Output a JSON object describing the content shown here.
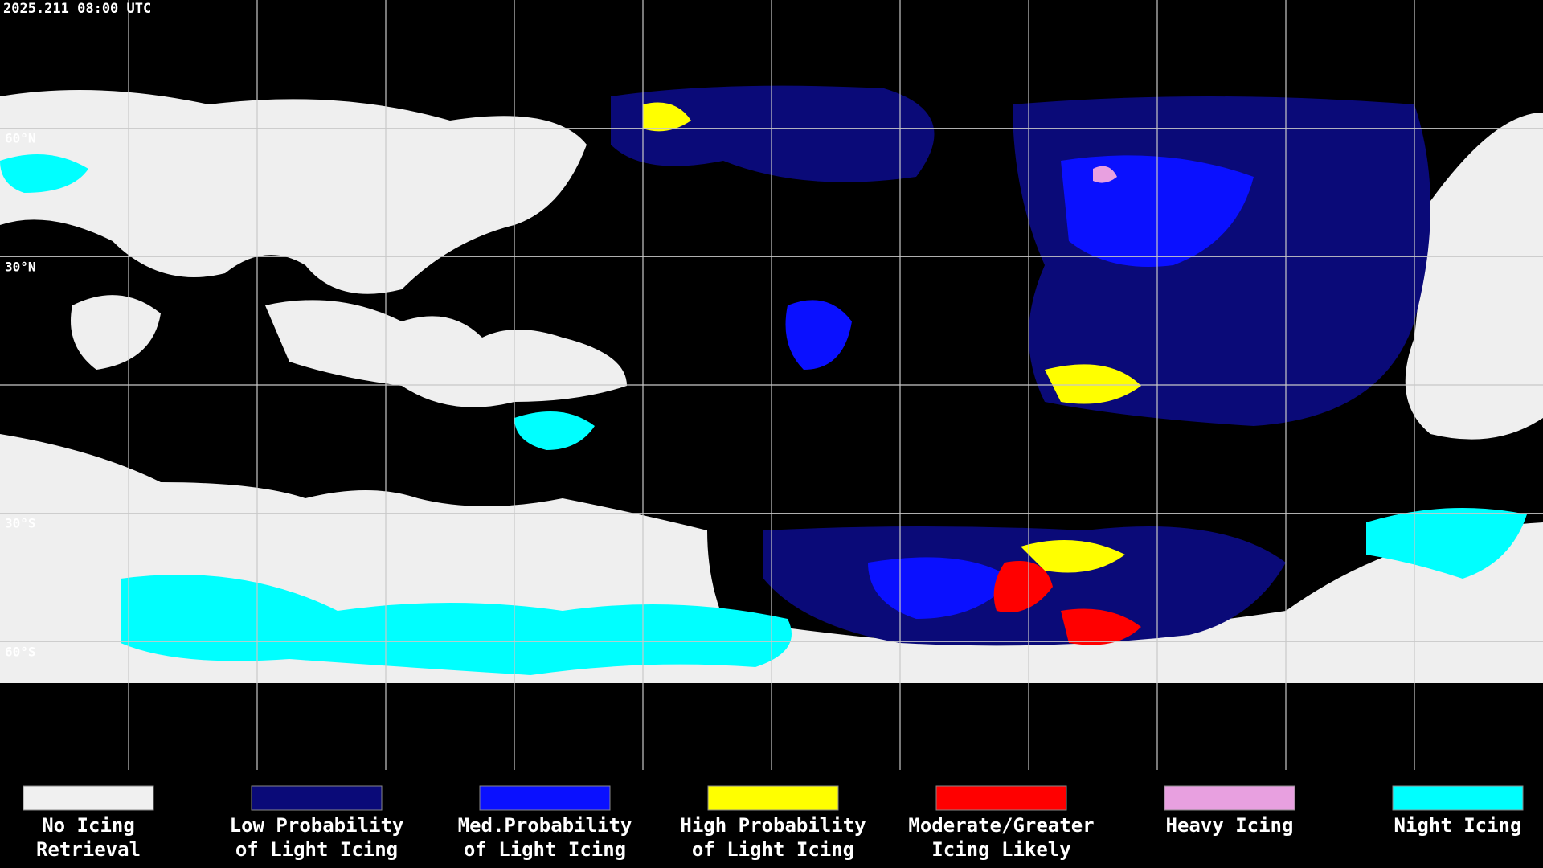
{
  "header": {
    "timestamp": "2025.211 08:00 UTC"
  },
  "map": {
    "lat_labels": [
      "60°N",
      "30°N",
      "30°S",
      "60°S"
    ]
  },
  "legend": {
    "items": [
      {
        "lines": [
          "No Icing",
          "Retrieval"
        ],
        "color": "#f0f0f0"
      },
      {
        "lines": [
          "Low Probability",
          "of Light Icing"
        ],
        "color": "#0a0a78"
      },
      {
        "lines": [
          "Med.Probability",
          "of Light Icing"
        ],
        "color": "#0a10ff"
      },
      {
        "lines": [
          "High Probability",
          "of Light Icing"
        ],
        "color": "#ffff00"
      },
      {
        "lines": [
          "Moderate/Greater",
          "Icing Likely"
        ],
        "color": "#ff0000"
      },
      {
        "lines": [
          "Heavy Icing"
        ],
        "color": "#e8a0e0"
      },
      {
        "lines": [
          "Night Icing"
        ],
        "color": "#00ffff"
      }
    ]
  }
}
